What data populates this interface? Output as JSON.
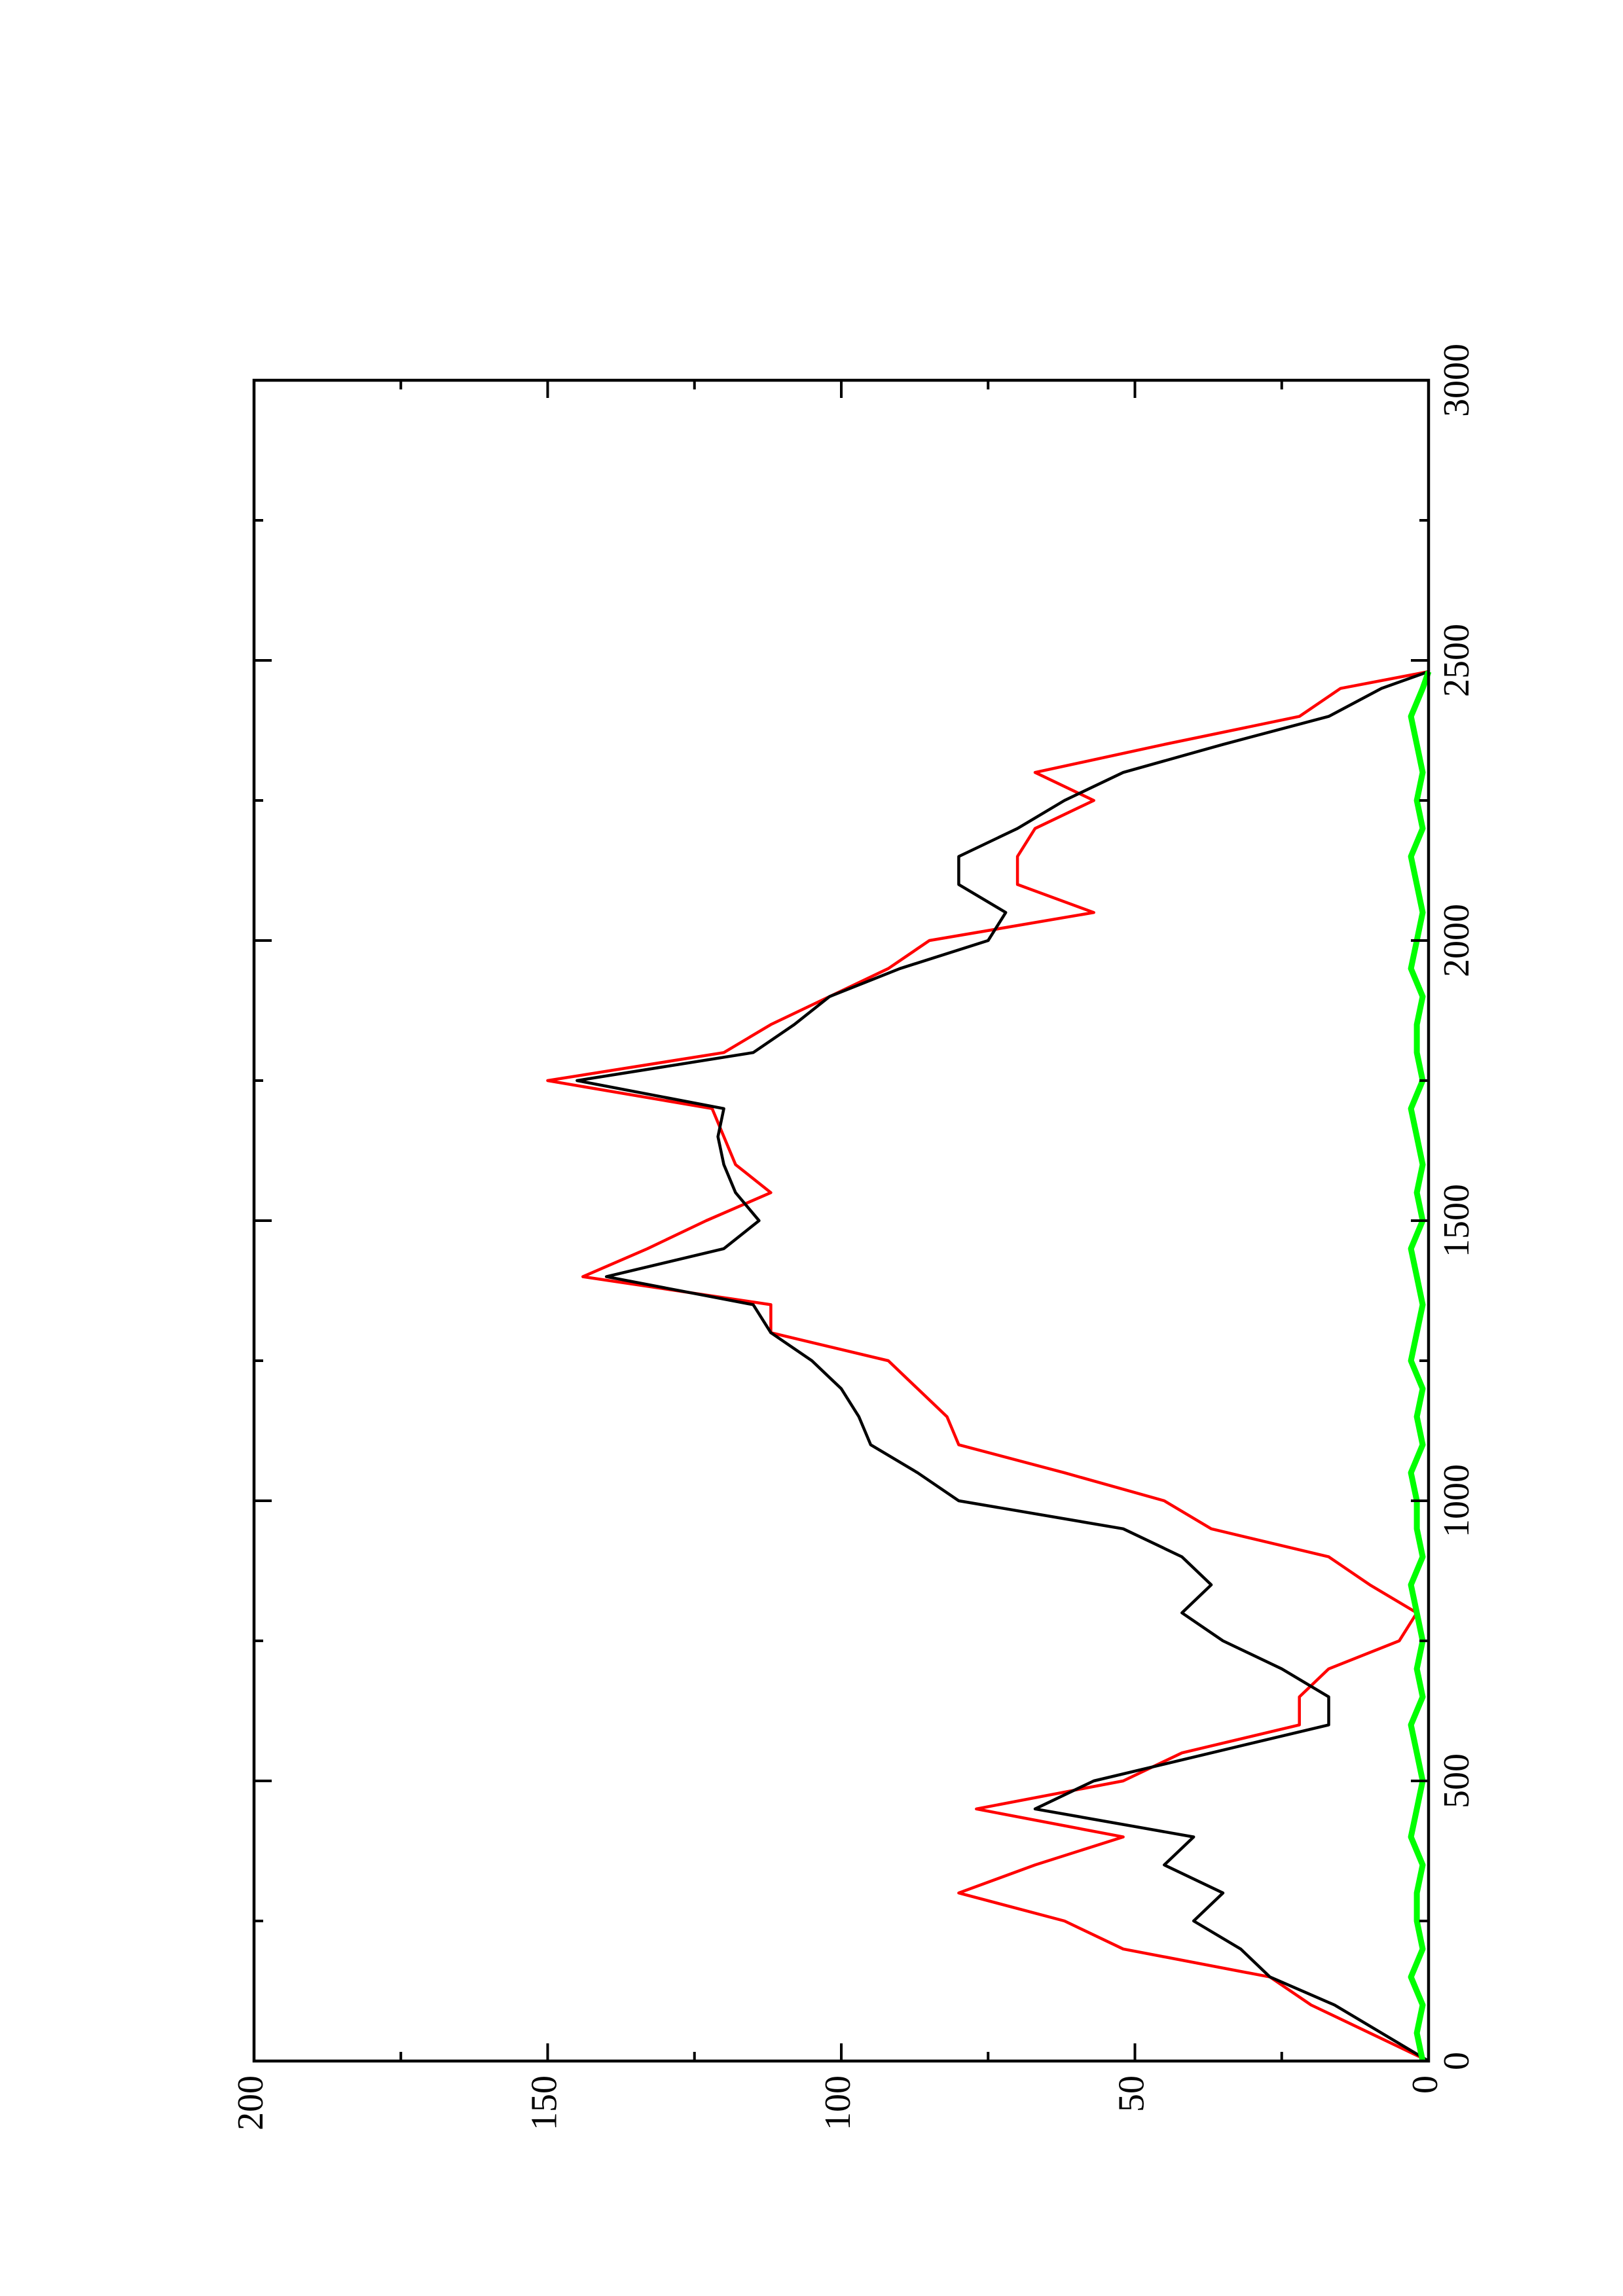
{
  "chart_data": {
    "type": "line",
    "x": [
      0,
      50,
      100,
      150,
      200,
      250,
      300,
      350,
      400,
      450,
      500,
      550,
      600,
      650,
      700,
      750,
      800,
      850,
      900,
      950,
      1000,
      1050,
      1100,
      1150,
      1200,
      1250,
      1300,
      1350,
      1400,
      1450,
      1500,
      1550,
      1600,
      1650,
      1700,
      1750,
      1800,
      1850,
      1900,
      1950,
      2000,
      2050,
      2100,
      2150,
      2200,
      2250,
      2300,
      2350,
      2400,
      2450,
      2480
    ],
    "series": [
      {
        "color": "#ff0000",
        "values": [
          0,
          10,
          20,
          27,
          52,
          62,
          80,
          67,
          52,
          77,
          52,
          42,
          22,
          22,
          17,
          5,
          2,
          10,
          17,
          37,
          45,
          62,
          80,
          82,
          87,
          92,
          112,
          112,
          144,
          133,
          123,
          112,
          118,
          120,
          122,
          150,
          120,
          112,
          102,
          92,
          85,
          57,
          70,
          70,
          67,
          57,
          67,
          45,
          22,
          15,
          0
        ]
      },
      {
        "color": "#000000",
        "values": [
          0,
          8,
          16,
          27,
          32,
          40,
          35,
          45,
          40,
          67,
          57,
          37,
          17,
          17,
          25,
          35,
          42,
          37,
          42,
          52,
          80,
          87,
          95,
          97,
          100,
          105,
          112,
          115,
          140,
          120,
          114,
          118,
          120,
          121,
          120,
          145,
          115,
          108,
          102,
          90,
          75,
          72,
          80,
          80,
          70,
          62,
          52,
          35,
          17,
          8,
          0
        ]
      },
      {
        "color": "#00ff00",
        "values": [
          1,
          2,
          1,
          3,
          1,
          2,
          2,
          1,
          3,
          2,
          1,
          2,
          3,
          1,
          2,
          1,
          2,
          3,
          1,
          2,
          2,
          3,
          1,
          2,
          1,
          3,
          2,
          1,
          2,
          3,
          1,
          2,
          1,
          2,
          3,
          1,
          2,
          2,
          1,
          3,
          2,
          1,
          2,
          3,
          1,
          2,
          1,
          2,
          3,
          1,
          0
        ]
      }
    ],
    "xlim": [
      0,
      3000
    ],
    "xticks": [
      0,
      500,
      1000,
      1500,
      2000,
      2500,
      3000
    ],
    "xticks_minor": [
      250,
      750,
      1250,
      1750,
      2250,
      2750
    ],
    "ylim": [
      0,
      200
    ],
    "yticks": [
      0,
      50,
      100,
      150,
      200
    ],
    "yticks_minor": [
      25,
      75,
      125,
      175
    ],
    "rotated": true
  }
}
